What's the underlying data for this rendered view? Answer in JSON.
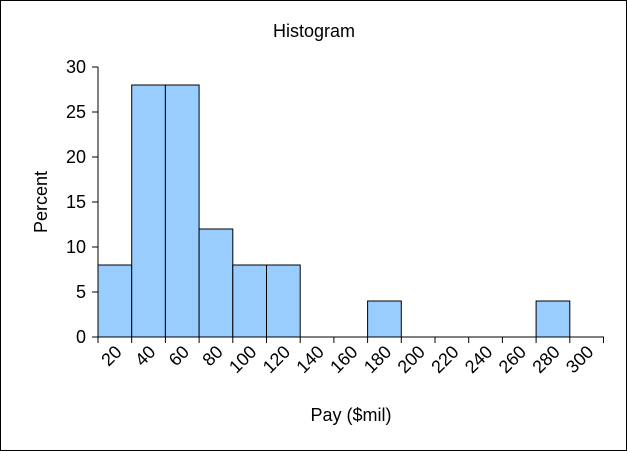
{
  "chart_data": {
    "type": "bar",
    "title": "Histogram",
    "xlabel": "Pay ($mil)",
    "ylabel": "Percent",
    "categories": [
      "20",
      "40",
      "60",
      "80",
      "100",
      "120",
      "140",
      "160",
      "180",
      "200",
      "220",
      "240",
      "260",
      "280",
      "300"
    ],
    "values": [
      8,
      28,
      28,
      12,
      8,
      8,
      0,
      0,
      4,
      0,
      0,
      0,
      0,
      4,
      0
    ],
    "ylim": [
      0,
      30
    ],
    "yticks": [
      0,
      5,
      10,
      15,
      20,
      25,
      30
    ],
    "ytick_labels": [
      "0",
      "5",
      "10",
      "15",
      "20",
      "25",
      "30"
    ],
    "grid": false,
    "legend": "none",
    "bar_color": "#99ccff",
    "bar_edge_color": "#000000"
  }
}
